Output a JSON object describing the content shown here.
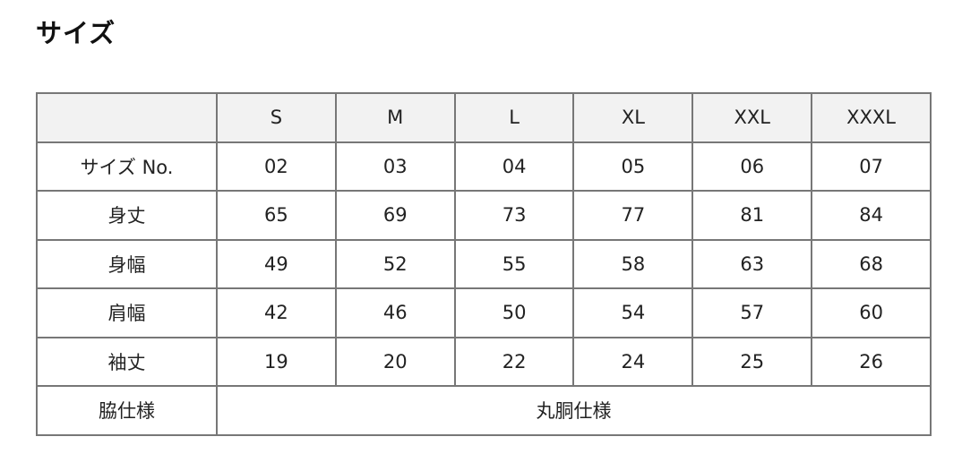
{
  "title": "サイズ",
  "table": {
    "header": [
      "",
      "S",
      "M",
      "L",
      "XL",
      "XXL",
      "XXXL"
    ],
    "rows": [
      [
        "サイズ No.",
        "02",
        "03",
        "04",
        "05",
        "06",
        "07"
      ],
      [
        "身丈",
        "65",
        "69",
        "73",
        "77",
        "81",
        "84"
      ],
      [
        "身幅",
        "49",
        "52",
        "55",
        "58",
        "63",
        "68"
      ],
      [
        "肩幅",
        "42",
        "46",
        "50",
        "54",
        "57",
        "60"
      ],
      [
        "袖丈",
        "19",
        "20",
        "22",
        "24",
        "25",
        "26"
      ]
    ],
    "footer": {
      "label": "脇仕様",
      "value": "丸胴仕様"
    }
  }
}
